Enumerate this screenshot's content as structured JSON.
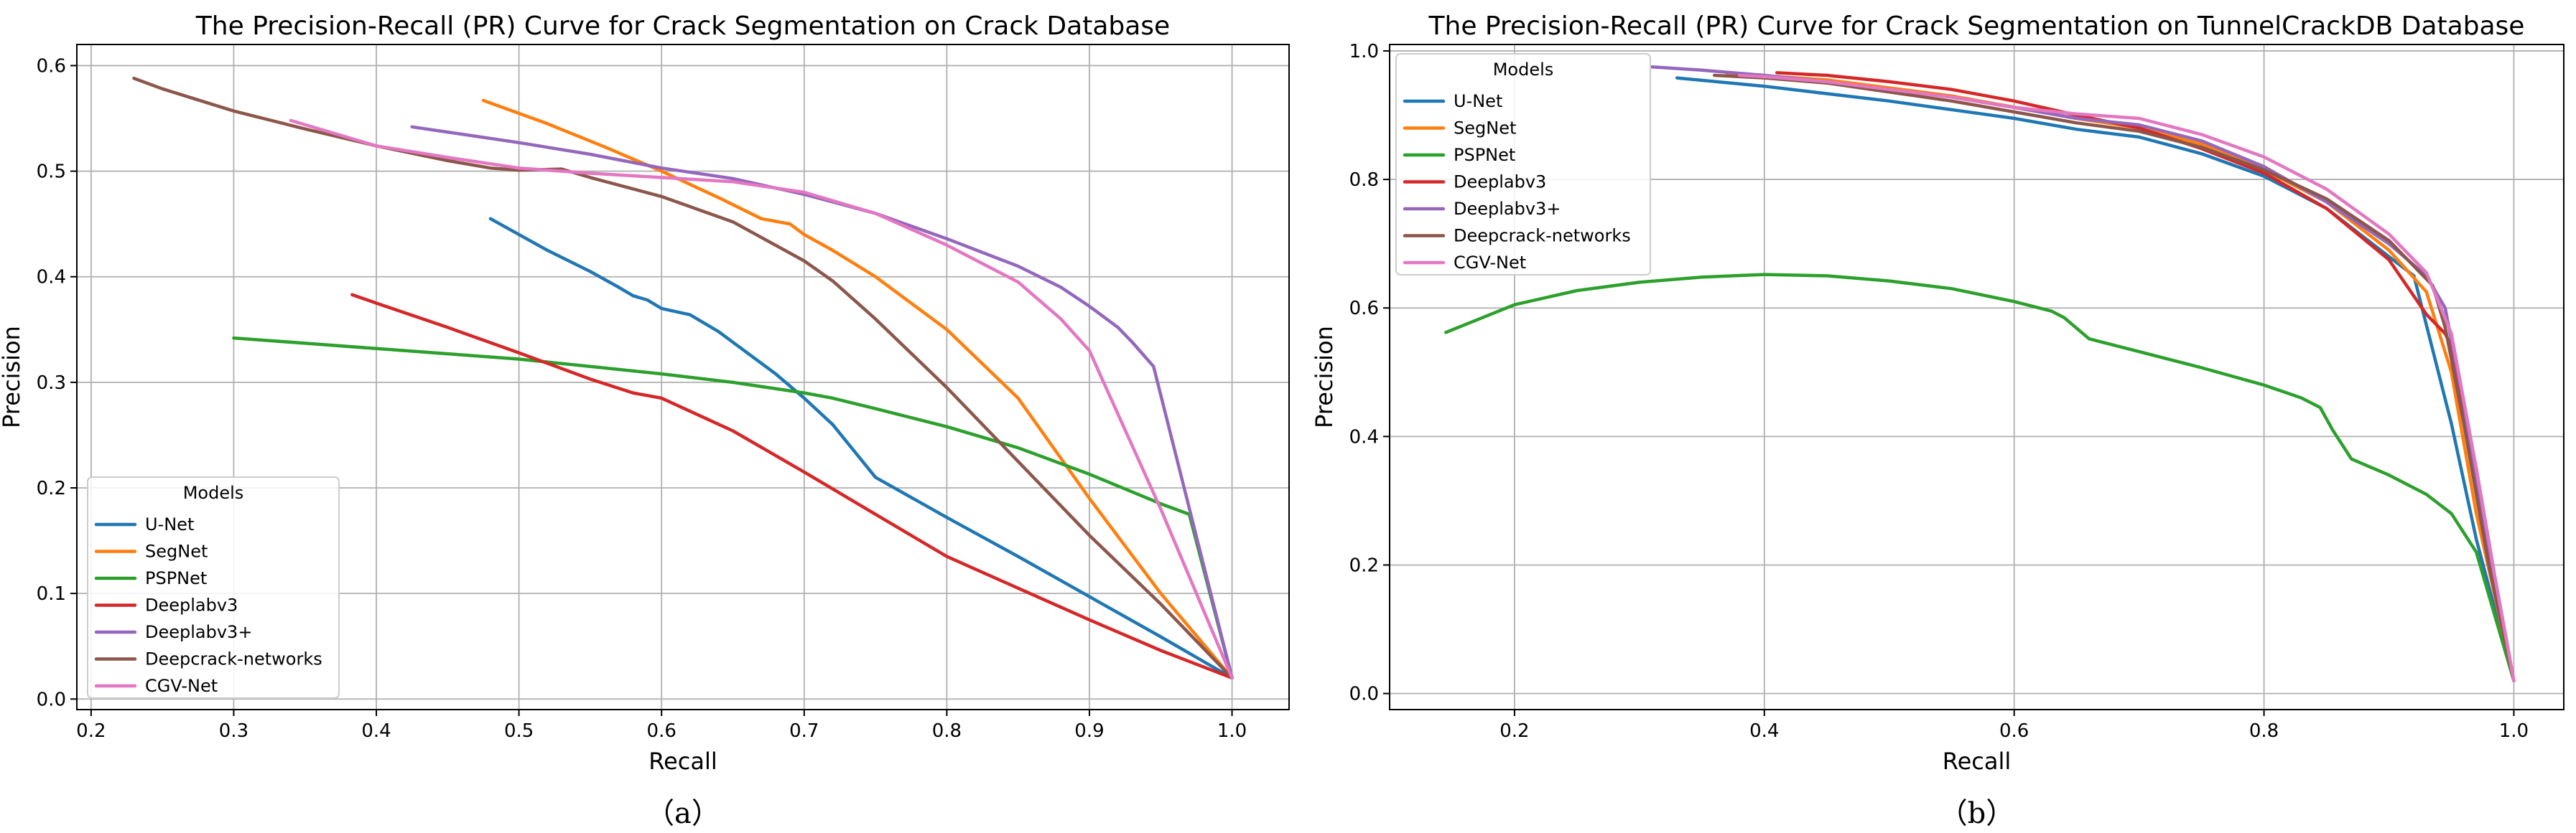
{
  "chart_data": [
    {
      "type": "line",
      "title": "The Precision-Recall (PR) Curve for Crack Segmentation on Crack Database",
      "xlabel": "Recall",
      "ylabel": "Precision",
      "xlim": [
        0.19,
        1.04
      ],
      "ylim": [
        -0.01,
        0.62
      ],
      "xticks": [
        0.2,
        0.3,
        0.4,
        0.5,
        0.6,
        0.7,
        0.8,
        0.9,
        1.0
      ],
      "xtick_labels": [
        "0.2",
        "0.3",
        "0.4",
        "0.5",
        "0.6",
        "0.7",
        "0.8",
        "0.9",
        "1.0"
      ],
      "yticks": [
        0.0,
        0.1,
        0.2,
        0.3,
        0.4,
        0.5,
        0.6
      ],
      "ytick_labels": [
        "0.0",
        "0.1",
        "0.2",
        "0.3",
        "0.4",
        "0.5",
        "0.6"
      ],
      "grid": true,
      "caption": "（a）",
      "legend": {
        "title": "Models",
        "position": "lower-left"
      },
      "series": [
        {
          "name": "U-Net",
          "color": "#1f77b4",
          "x": [
            0.48,
            0.52,
            0.55,
            0.57,
            0.58,
            0.59,
            0.6,
            0.62,
            0.64,
            0.66,
            0.68,
            0.7,
            0.72,
            0.75,
            0.8,
            0.85,
            0.9,
            0.95,
            1.0
          ],
          "y": [
            0.455,
            0.425,
            0.405,
            0.39,
            0.382,
            0.378,
            0.37,
            0.364,
            0.348,
            0.328,
            0.308,
            0.285,
            0.26,
            0.21,
            0.172,
            0.135,
            0.097,
            0.059,
            0.02
          ]
        },
        {
          "name": "SegNet",
          "color": "#ff7f0e",
          "x": [
            0.475,
            0.52,
            0.56,
            0.6,
            0.64,
            0.67,
            0.69,
            0.7,
            0.72,
            0.75,
            0.8,
            0.85,
            0.9,
            0.95,
            1.0
          ],
          "y": [
            0.567,
            0.545,
            0.523,
            0.5,
            0.475,
            0.455,
            0.45,
            0.44,
            0.425,
            0.4,
            0.35,
            0.285,
            0.19,
            0.1,
            0.02
          ]
        },
        {
          "name": "PSPNet",
          "color": "#2ca02c",
          "x": [
            0.3,
            0.35,
            0.4,
            0.45,
            0.5,
            0.55,
            0.6,
            0.65,
            0.7,
            0.72,
            0.75,
            0.8,
            0.85,
            0.9,
            0.95,
            0.97,
            1.0
          ],
          "y": [
            0.342,
            0.337,
            0.332,
            0.327,
            0.322,
            0.315,
            0.308,
            0.3,
            0.29,
            0.285,
            0.275,
            0.258,
            0.238,
            0.213,
            0.185,
            0.175,
            0.02
          ]
        },
        {
          "name": "Deeplabv3",
          "color": "#d62728",
          "x": [
            0.383,
            0.4,
            0.45,
            0.5,
            0.55,
            0.58,
            0.6,
            0.65,
            0.7,
            0.75,
            0.8,
            0.85,
            0.9,
            0.95,
            1.0
          ],
          "y": [
            0.383,
            0.375,
            0.352,
            0.328,
            0.303,
            0.29,
            0.285,
            0.254,
            0.215,
            0.175,
            0.135,
            0.105,
            0.075,
            0.046,
            0.02
          ]
        },
        {
          "name": "Deeplabv3+",
          "color": "#9467bd",
          "x": [
            0.425,
            0.45,
            0.5,
            0.55,
            0.6,
            0.65,
            0.7,
            0.75,
            0.8,
            0.85,
            0.88,
            0.9,
            0.92,
            0.93,
            0.945,
            1.0
          ],
          "y": [
            0.542,
            0.537,
            0.527,
            0.516,
            0.503,
            0.493,
            0.478,
            0.46,
            0.436,
            0.41,
            0.39,
            0.372,
            0.352,
            0.338,
            0.315,
            0.02
          ]
        },
        {
          "name": "Deepcrack-networks",
          "color": "#8c564b",
          "x": [
            0.23,
            0.25,
            0.3,
            0.35,
            0.4,
            0.45,
            0.48,
            0.5,
            0.53,
            0.55,
            0.6,
            0.65,
            0.7,
            0.72,
            0.75,
            0.8,
            0.85,
            0.9,
            0.95,
            1.0
          ],
          "y": [
            0.588,
            0.578,
            0.557,
            0.54,
            0.524,
            0.51,
            0.503,
            0.501,
            0.502,
            0.494,
            0.476,
            0.452,
            0.415,
            0.396,
            0.36,
            0.295,
            0.225,
            0.155,
            0.09,
            0.02
          ]
        },
        {
          "name": "CGV-Net",
          "color": "#e377c2",
          "x": [
            0.34,
            0.38,
            0.4,
            0.45,
            0.5,
            0.55,
            0.6,
            0.65,
            0.7,
            0.75,
            0.8,
            0.85,
            0.88,
            0.9,
            0.91,
            0.95,
            1.0
          ],
          "y": [
            0.548,
            0.532,
            0.524,
            0.513,
            0.503,
            0.498,
            0.494,
            0.49,
            0.48,
            0.46,
            0.43,
            0.395,
            0.36,
            0.33,
            0.3,
            0.18,
            0.02
          ]
        }
      ]
    },
    {
      "type": "line",
      "title": "The Precision-Recall (PR) Curve for Crack Segmentation on TunnelCrackDB Database",
      "xlabel": "Recall",
      "ylabel": "Precision",
      "xlim": [
        0.1,
        1.04
      ],
      "ylim": [
        -0.025,
        1.01
      ],
      "xticks": [
        0.2,
        0.4,
        0.6,
        0.8,
        1.0
      ],
      "xtick_labels": [
        "0.2",
        "0.4",
        "0.6",
        "0.8",
        "1.0"
      ],
      "yticks": [
        0.0,
        0.2,
        0.4,
        0.6,
        0.8,
        1.0
      ],
      "ytick_labels": [
        "0.0",
        "0.2",
        "0.4",
        "0.6",
        "0.8",
        "1.0"
      ],
      "grid": true,
      "caption": "（b）",
      "legend": {
        "title": "Models",
        "position": "upper-left"
      },
      "series": [
        {
          "name": "U-Net",
          "color": "#1f77b4",
          "x": [
            0.33,
            0.4,
            0.5,
            0.6,
            0.65,
            0.7,
            0.75,
            0.8,
            0.85,
            0.9,
            0.92,
            0.95,
            0.97,
            1.0
          ],
          "y": [
            0.958,
            0.945,
            0.922,
            0.895,
            0.878,
            0.866,
            0.84,
            0.805,
            0.755,
            0.68,
            0.65,
            0.42,
            0.24,
            0.02
          ]
        },
        {
          "name": "SegNet",
          "color": "#ff7f0e",
          "x": [
            0.37,
            0.45,
            0.55,
            0.65,
            0.7,
            0.75,
            0.8,
            0.85,
            0.9,
            0.93,
            0.95,
            0.97,
            1.0
          ],
          "y": [
            0.965,
            0.955,
            0.93,
            0.895,
            0.88,
            0.855,
            0.815,
            0.765,
            0.69,
            0.625,
            0.5,
            0.28,
            0.02
          ]
        },
        {
          "name": "PSPNet",
          "color": "#2ca02c",
          "x": [
            0.145,
            0.2,
            0.25,
            0.3,
            0.35,
            0.4,
            0.45,
            0.5,
            0.55,
            0.6,
            0.63,
            0.64,
            0.66,
            0.7,
            0.75,
            0.8,
            0.83,
            0.845,
            0.855,
            0.87,
            0.9,
            0.93,
            0.95,
            0.97,
            1.0
          ],
          "y": [
            0.562,
            0.605,
            0.627,
            0.64,
            0.648,
            0.652,
            0.65,
            0.642,
            0.63,
            0.61,
            0.595,
            0.585,
            0.552,
            0.532,
            0.507,
            0.48,
            0.46,
            0.445,
            0.41,
            0.365,
            0.34,
            0.31,
            0.28,
            0.22,
            0.02
          ]
        },
        {
          "name": "Deeplabv3",
          "color": "#d62728",
          "x": [
            0.41,
            0.45,
            0.5,
            0.55,
            0.6,
            0.65,
            0.7,
            0.75,
            0.8,
            0.85,
            0.9,
            0.93,
            0.945,
            0.95,
            0.97,
            0.985,
            1.0
          ],
          "y": [
            0.966,
            0.962,
            0.952,
            0.94,
            0.922,
            0.9,
            0.88,
            0.848,
            0.81,
            0.755,
            0.675,
            0.59,
            0.56,
            0.54,
            0.35,
            0.18,
            0.02
          ]
        },
        {
          "name": "Deeplabv3+",
          "color": "#9467bd",
          "x": [
            0.31,
            0.35,
            0.4,
            0.45,
            0.5,
            0.55,
            0.6,
            0.65,
            0.7,
            0.75,
            0.8,
            0.85,
            0.9,
            0.93,
            0.945,
            0.96,
            0.98,
            1.0
          ],
          "y": [
            0.975,
            0.97,
            0.962,
            0.952,
            0.94,
            0.928,
            0.912,
            0.895,
            0.885,
            0.86,
            0.82,
            0.765,
            0.7,
            0.65,
            0.6,
            0.45,
            0.22,
            0.02
          ]
        },
        {
          "name": "Deepcrack-networks",
          "color": "#8c564b",
          "x": [
            0.36,
            0.4,
            0.45,
            0.5,
            0.55,
            0.6,
            0.65,
            0.7,
            0.75,
            0.8,
            0.85,
            0.9,
            0.935,
            0.945,
            0.96,
            0.98,
            1.0
          ],
          "y": [
            0.962,
            0.958,
            0.95,
            0.936,
            0.922,
            0.905,
            0.888,
            0.875,
            0.85,
            0.815,
            0.77,
            0.705,
            0.635,
            0.57,
            0.42,
            0.2,
            0.02
          ]
        },
        {
          "name": "CGV-Net",
          "color": "#e377c2",
          "x": [
            0.38,
            0.4,
            0.45,
            0.5,
            0.55,
            0.6,
            0.65,
            0.7,
            0.75,
            0.8,
            0.85,
            0.9,
            0.93,
            0.95,
            0.97,
            0.985,
            1.0
          ],
          "y": [
            0.962,
            0.96,
            0.952,
            0.94,
            0.928,
            0.912,
            0.902,
            0.895,
            0.87,
            0.835,
            0.785,
            0.715,
            0.655,
            0.56,
            0.35,
            0.18,
            0.02
          ]
        }
      ]
    }
  ]
}
